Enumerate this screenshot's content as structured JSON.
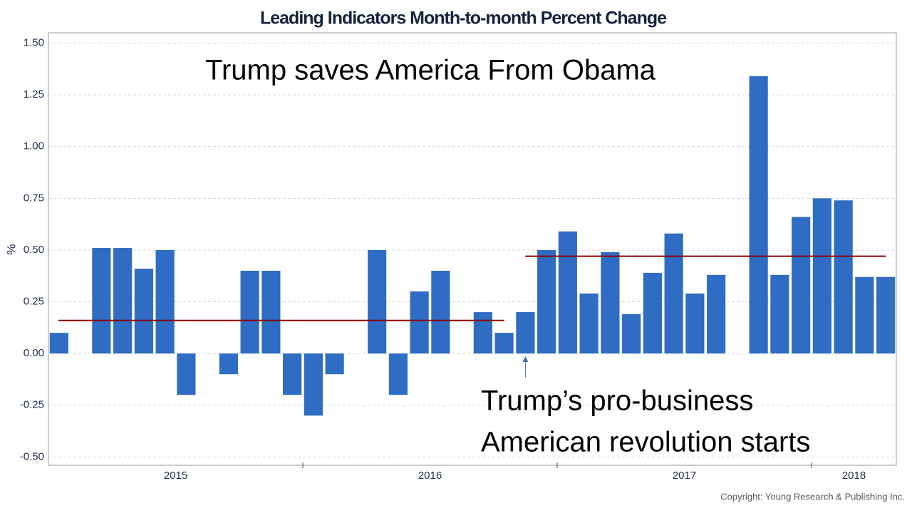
{
  "chart_data": {
    "type": "bar",
    "title": "Leading Indicators Month-to-month Percent Change",
    "y_label": "%",
    "categories": [
      null,
      null,
      null,
      null,
      null,
      null,
      null,
      null,
      null,
      null,
      null,
      null,
      null,
      null,
      null,
      null,
      null,
      null,
      null,
      null,
      null,
      null,
      null,
      null,
      null,
      null,
      null,
      null,
      null,
      null,
      null,
      null,
      null,
      null,
      null,
      null,
      null,
      null,
      null,
      null
    ],
    "year_labels": [
      "2015",
      "2016",
      "2017",
      "2018"
    ],
    "values": [
      0.1,
      0,
      0.51,
      0.51,
      0.41,
      0.5,
      -0.2,
      0,
      -0.1,
      0.4,
      0.4,
      -0.2,
      -0.3,
      -0.1,
      0,
      0.5,
      -0.2,
      0.3,
      0.4,
      0,
      0.2,
      0.1,
      0.2,
      0.5,
      0.59,
      0.29,
      0.49,
      0.19,
      0.39,
      0.58,
      0.29,
      0.38,
      0,
      1.34,
      0.38,
      0.66,
      0.75,
      0.74,
      0.37,
      0.37
    ],
    "color": "#2f6cc4",
    "ylim": [
      -0.54,
      1.55
    ],
    "yticks": [
      {
        "value": -0.5,
        "label": "-0.50"
      },
      {
        "value": -0.25,
        "label": "-0.25"
      },
      {
        "value": 0,
        "label": "0.00"
      },
      {
        "value": 0.25,
        "label": "0.25"
      },
      {
        "value": 0.5,
        "label": "0.50"
      },
      {
        "value": 0.75,
        "label": "0.75"
      },
      {
        "value": 1.0,
        "label": "1.00"
      },
      {
        "value": 1.25,
        "label": "1.25"
      },
      {
        "value": 1.5,
        "label": "1.50"
      }
    ],
    "grid": true,
    "reference_lines": [
      {
        "value": 0.16,
        "start": 0,
        "end": 21,
        "color": "#8b0000"
      },
      {
        "value": 0.47,
        "start": 22,
        "end": 39,
        "color": "#8b0000"
      }
    ],
    "annotations": [
      "Trump saves America From Obama",
      "Trump’s pro-business",
      "American  revolution starts"
    ],
    "arrow_index": 22,
    "copyright": "Copyright: Young Research & Publishing Inc."
  }
}
